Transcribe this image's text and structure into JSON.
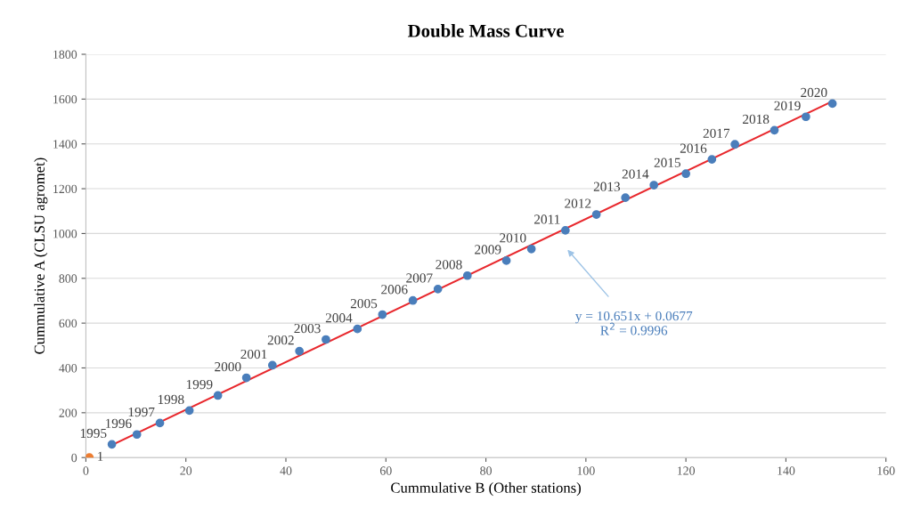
{
  "chart_data": {
    "type": "scatter",
    "title": "Double Mass Curve",
    "xlabel": "Cummulative B (Other stations)",
    "ylabel": "Cummulative A (CLSU agromet)",
    "xlim": [
      0,
      160
    ],
    "xticks": [
      0,
      20,
      40,
      60,
      80,
      100,
      120,
      140,
      160
    ],
    "ylim": [
      0,
      1800
    ],
    "yticks": [
      0,
      200,
      400,
      600,
      800,
      1000,
      1200,
      1400,
      1600,
      1800
    ],
    "grid": "y",
    "legend": false,
    "marker": "circle",
    "series": [
      {
        "color": "#4a7ebb",
        "x": [
          5.2,
          10.2,
          14.8,
          20.7,
          26.4,
          32.1,
          37.3,
          42.7,
          48,
          54.3,
          59.3,
          65.4,
          70.4,
          76.3,
          84.1,
          89.1,
          95.9,
          102.1,
          107.9,
          113.6,
          120,
          125.2,
          129.8,
          137.7,
          144,
          149.3
        ],
        "values": [
          59,
          103,
          154,
          210,
          277,
          356,
          412,
          475,
          527,
          574,
          638,
          701,
          752,
          812,
          879,
          931,
          1014,
          1085,
          1160,
          1216,
          1267,
          1331,
          1398,
          1461,
          1521,
          1580
        ]
      },
      {
        "color": "#ed7d31",
        "x": [
          0.7
        ],
        "values": [
          0
        ]
      },
      {
        "type": "line",
        "marker": "none",
        "color": "#e8282d",
        "x": [
          5.2,
          149.3
        ],
        "values": [
          56,
          1590
        ]
      }
    ],
    "annotations": [
      {
        "text": "1995",
        "x": 5.2,
        "y": 59
      },
      {
        "text": "1996",
        "x": 10.2,
        "y": 103
      },
      {
        "text": "1997",
        "x": 14.8,
        "y": 154
      },
      {
        "text": "1998",
        "x": 20.7,
        "y": 210
      },
      {
        "text": "1999",
        "x": 26.4,
        "y": 277
      },
      {
        "text": "2000",
        "x": 32.1,
        "y": 356
      },
      {
        "text": "2001",
        "x": 37.3,
        "y": 412
      },
      {
        "text": "2002",
        "x": 42.7,
        "y": 475
      },
      {
        "text": "2003",
        "x": 48,
        "y": 527
      },
      {
        "text": "2004",
        "x": 54.3,
        "y": 574
      },
      {
        "text": "2005",
        "x": 59.3,
        "y": 638
      },
      {
        "text": "2006",
        "x": 65.4,
        "y": 701
      },
      {
        "text": "2007",
        "x": 70.4,
        "y": 752
      },
      {
        "text": "2008",
        "x": 76.3,
        "y": 812
      },
      {
        "text": "2009",
        "x": 84.1,
        "y": 879
      },
      {
        "text": "2010",
        "x": 89.1,
        "y": 931
      },
      {
        "text": "2011",
        "x": 95.9,
        "y": 1014
      },
      {
        "text": "2012",
        "x": 102.1,
        "y": 1085
      },
      {
        "text": "2013",
        "x": 107.9,
        "y": 1160
      },
      {
        "text": "2014",
        "x": 113.6,
        "y": 1216
      },
      {
        "text": "2015",
        "x": 120,
        "y": 1267
      },
      {
        "text": "2016",
        "x": 125.2,
        "y": 1331
      },
      {
        "text": "2017",
        "x": 129.8,
        "y": 1398
      },
      {
        "text": "2018",
        "x": 137.7,
        "y": 1461
      },
      {
        "text": "2019",
        "x": 144,
        "y": 1521
      },
      {
        "text": "2020",
        "x": 149.3,
        "y": 1580
      },
      {
        "text": "1",
        "x": 0.7,
        "y": 0
      },
      "y = 10.651x + 0.0677\nR$^{2}$ = 0.9996"
    ]
  }
}
